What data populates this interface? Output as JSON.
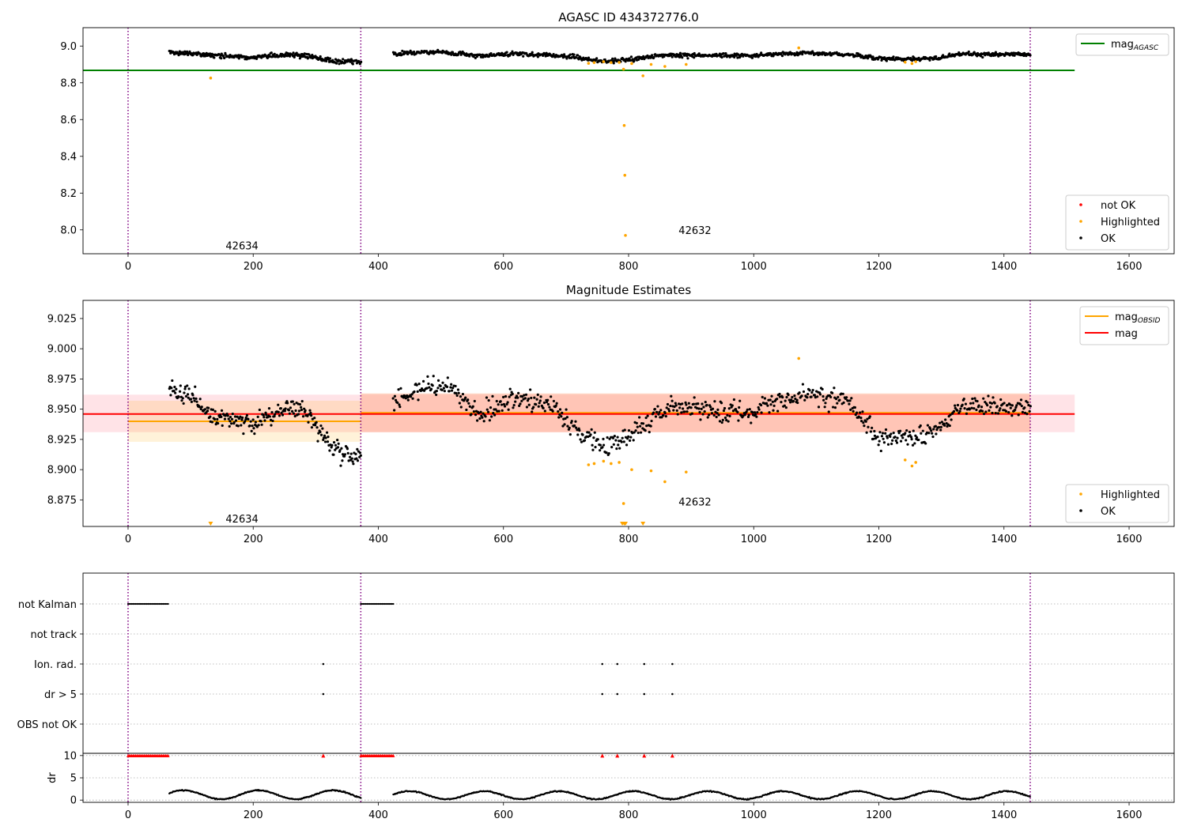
{
  "figure_title": "AGASC ID 434372776.0",
  "colors": {
    "ok": "#000000",
    "highlighted": "#ffa500",
    "not_ok": "#ff0000",
    "agasc_line": "#008000",
    "obsid_line": "#ffa500",
    "mag_line": "#ff0000",
    "obs_boundary": "#800080",
    "dr_marker": "#ff0000"
  },
  "chart_data": [
    {
      "type": "scatter",
      "title": "AGASC ID 434372776.0",
      "xlabel": "",
      "ylabel": "",
      "xlim": [
        -72,
        1672
      ],
      "ylim": [
        7.87,
        9.1
      ],
      "xticks": [
        0,
        200,
        400,
        600,
        800,
        1000,
        1200,
        1400,
        1600
      ],
      "yticks": [
        8.0,
        8.2,
        8.4,
        8.6,
        8.8,
        9.0
      ],
      "legend_placement": [
        "top-right",
        "bottom-right"
      ],
      "grid": false,
      "obs_boundaries": [
        0,
        372,
        1442
      ],
      "obs_labels": [
        {
          "text": "42634",
          "x": 156,
          "y": 7.91
        },
        {
          "text": "42632",
          "x": 880,
          "y": 7.995
        }
      ],
      "lines": [
        {
          "name": "mag_AGASC",
          "y": 8.868,
          "x": [
            -72,
            1513
          ],
          "color": "#008000"
        }
      ],
      "series": [
        {
          "name": "not OK",
          "color": "#ff0000",
          "points": []
        },
        {
          "name": "Highlighted",
          "color": "#ffa500",
          "points": [
            [
              132,
              8.826
            ],
            [
              736,
              8.906
            ],
            [
              745,
              8.91
            ],
            [
              760,
              8.915
            ],
            [
              772,
              8.91
            ],
            [
              785,
              8.911
            ],
            [
              792,
              8.874
            ],
            [
              793,
              8.568
            ],
            [
              794,
              8.297
            ],
            [
              795,
              7.97
            ],
            [
              805,
              8.905
            ],
            [
              823,
              8.838
            ],
            [
              836,
              8.9
            ],
            [
              858,
              8.889
            ],
            [
              892,
              8.9
            ],
            [
              1072,
              8.99
            ],
            [
              1242,
              8.912
            ],
            [
              1253,
              8.905
            ],
            [
              1259,
              8.915
            ]
          ]
        },
        {
          "name": "OK",
          "color": "#000000",
          "segments": [
            {
              "x0": 66,
              "x1": 372,
              "n": 300,
              "trend": [
                [
                  66,
                  8.965
                ],
                [
                  120,
                  8.952
                ],
                [
                  200,
                  8.94
                ],
                [
                  260,
                  8.955
                ],
                [
                  300,
                  8.94
                ],
                [
                  330,
                  8.915
                ],
                [
                  372,
                  8.915
                ]
              ],
              "noise": 0.012
            },
            {
              "x0": 424,
              "x1": 1442,
              "n": 900,
              "trend": [
                [
                  424,
                  8.955
                ],
                [
                  500,
                  8.97
                ],
                [
                  560,
                  8.945
                ],
                [
                  620,
                  8.958
                ],
                [
                  700,
                  8.945
                ],
                [
                  760,
                  8.918
                ],
                [
                  800,
                  8.925
                ],
                [
                  850,
                  8.95
                ],
                [
                  1000,
                  8.948
                ],
                [
                  1080,
                  8.962
                ],
                [
                  1150,
                  8.955
                ],
                [
                  1200,
                  8.93
                ],
                [
                  1280,
                  8.93
                ],
                [
                  1330,
                  8.955
                ],
                [
                  1442,
                  8.955
                ]
              ],
              "noise": 0.011
            }
          ]
        }
      ],
      "legends": [
        {
          "position": "top-right",
          "entries": [
            {
              "label": "mag",
              "subscript": "AGASC",
              "kind": "line",
              "color": "#008000"
            }
          ]
        },
        {
          "position": "bottom-right",
          "entries": [
            {
              "label": "not OK",
              "kind": "marker",
              "color": "#ff0000"
            },
            {
              "label": "Highlighted",
              "kind": "marker",
              "color": "#ffa500"
            },
            {
              "label": "OK",
              "kind": "marker",
              "color": "#000000"
            }
          ]
        }
      ]
    },
    {
      "type": "scatter",
      "title": "Magnitude Estimates",
      "xlabel": "",
      "ylabel": "",
      "xlim": [
        -72,
        1672
      ],
      "ylim": [
        8.853,
        9.04
      ],
      "xticks": [
        0,
        200,
        400,
        600,
        800,
        1000,
        1200,
        1400,
        1600
      ],
      "yticks": [
        8.875,
        8.9,
        8.925,
        8.95,
        8.975,
        9.0,
        9.025
      ],
      "legend_placement": [
        "top-right",
        "bottom-right"
      ],
      "grid": false,
      "obs_boundaries": [
        0,
        372,
        1442
      ],
      "obs_labels": [
        {
          "text": "42634",
          "x": 156,
          "y": 8.859
        },
        {
          "text": "42632",
          "x": 880,
          "y": 8.873
        }
      ],
      "bands": [
        {
          "x0": -72,
          "x1": 1513,
          "y0": 8.931,
          "y1": 8.962,
          "color": "#ffb6c1",
          "opacity": 0.38
        },
        {
          "x0": 0,
          "x1": 372,
          "y0": 8.923,
          "y1": 8.957,
          "color": "#ffa500",
          "opacity": 0.15
        },
        {
          "x0": 372,
          "x1": 1442,
          "y0": 8.931,
          "y1": 8.963,
          "color": "#ffa07a",
          "opacity": 0.45
        }
      ],
      "lines": [
        {
          "name": "mag_OBSID",
          "y": 8.94,
          "x": [
            0,
            372
          ],
          "color": "#ffa500"
        },
        {
          "name": "mag_OBSID",
          "y": 8.947,
          "x": [
            372,
            1442
          ],
          "color": "#ffa500"
        },
        {
          "name": "mag",
          "y": 8.946,
          "x": [
            -72,
            1513
          ],
          "color": "#ff0000"
        }
      ],
      "series": [
        {
          "name": "Highlighted",
          "color": "#ffa500",
          "points": [
            [
              736,
              8.904
            ],
            [
              745,
              8.905
            ],
            [
              760,
              8.907
            ],
            [
              772,
              8.905
            ],
            [
              785,
              8.906
            ],
            [
              792,
              8.872
            ],
            [
              805,
              8.9
            ],
            [
              836,
              8.899
            ],
            [
              858,
              8.89
            ],
            [
              892,
              8.898
            ],
            [
              1072,
              8.992
            ],
            [
              1242,
              8.908
            ],
            [
              1253,
              8.903
            ],
            [
              1259,
              8.906
            ]
          ]
        },
        {
          "name": "Highlighted (below axis)",
          "color": "#ffa500",
          "marker": "triangle-down",
          "points": [
            [
              132,
              8.855
            ],
            [
              790,
              8.855
            ],
            [
              793,
              8.855
            ],
            [
              795,
              8.855
            ],
            [
              823,
              8.855
            ]
          ]
        },
        {
          "name": "OK",
          "color": "#000000",
          "segments": [
            {
              "x0": 66,
              "x1": 372,
              "n": 260,
              "trend": [
                [
                  66,
                  8.965
                ],
                [
                  100,
                  8.962
                ],
                [
                  130,
                  8.945
                ],
                [
                  200,
                  8.936
                ],
                [
                  250,
                  8.952
                ],
                [
                  280,
                  8.948
                ],
                [
                  300,
                  8.935
                ],
                [
                  330,
                  8.918
                ],
                [
                  365,
                  8.908
                ],
                [
                  372,
                  8.918
                ]
              ],
              "noise": 0.008
            },
            {
              "x0": 424,
              "x1": 1442,
              "n": 760,
              "trend": [
                [
                  424,
                  8.955
                ],
                [
                  470,
                  8.968
                ],
                [
                  510,
                  8.97
                ],
                [
                  560,
                  8.945
                ],
                [
                  620,
                  8.96
                ],
                [
                  680,
                  8.952
                ],
                [
                  720,
                  8.93
                ],
                [
                  760,
                  8.918
                ],
                [
                  790,
                  8.925
                ],
                [
                  830,
                  8.94
                ],
                [
                  870,
                  8.952
                ],
                [
                  1000,
                  8.948
                ],
                [
                  1080,
                  8.962
                ],
                [
                  1150,
                  8.957
                ],
                [
                  1200,
                  8.925
                ],
                [
                  1280,
                  8.928
                ],
                [
                  1330,
                  8.953
                ],
                [
                  1442,
                  8.952
                ]
              ],
              "noise": 0.008
            }
          ]
        }
      ],
      "legends": [
        {
          "position": "top-right",
          "entries": [
            {
              "label": "mag",
              "subscript": "OBSID",
              "kind": "line",
              "color": "#ffa500"
            },
            {
              "label": "mag",
              "kind": "line",
              "color": "#ff0000"
            }
          ]
        },
        {
          "position": "bottom-right",
          "entries": [
            {
              "label": "Highlighted",
              "kind": "marker",
              "color": "#ffa500"
            },
            {
              "label": "OK",
              "kind": "marker",
              "color": "#000000"
            }
          ]
        }
      ]
    },
    {
      "type": "scatter",
      "title": "",
      "xlabel": "",
      "ylabel": "",
      "xlim": [
        -72,
        1672
      ],
      "grid": "horizontal dotted",
      "obs_boundaries": [
        0,
        372,
        1442
      ],
      "flag_rows": [
        "not Kalman",
        "not track",
        "Ion. rad.",
        "dr > 5",
        "OBS not OK"
      ],
      "flag_points": {
        "not Kalman": [
          [
            0,
            64
          ],
          [
            372,
            424
          ]
        ],
        "not track": [],
        "Ion. rad.": [
          312,
          758,
          782,
          825,
          870
        ],
        "dr > 5": [
          312,
          758,
          782,
          825,
          870
        ],
        "OBS not OK": []
      }
    },
    {
      "type": "scatter",
      "title": "",
      "xlabel": "",
      "ylabel": "dr",
      "xlim": [
        -72,
        1672
      ],
      "ylim": [
        -0.5,
        10.5
      ],
      "xticks": [
        0,
        200,
        400,
        600,
        800,
        1000,
        1200,
        1400,
        1600
      ],
      "yticks": [
        0,
        5,
        10
      ],
      "grid": "horizontal dotted",
      "obs_boundaries": [
        0,
        372,
        1442
      ],
      "clipped_at_10": {
        "ranges": [
          [
            0,
            64
          ],
          [
            372,
            424
          ]
        ],
        "points": [
          312,
          758,
          782,
          825,
          870
        ]
      },
      "series": [
        {
          "name": "dr",
          "color": "#000000",
          "segments": [
            {
              "x0": 66,
              "x1": 372,
              "mean": 1.2,
              "amp": 1.0
            },
            {
              "x0": 424,
              "x1": 1442,
              "mean": 1.1,
              "amp": 0.9
            }
          ]
        }
      ]
    }
  ]
}
